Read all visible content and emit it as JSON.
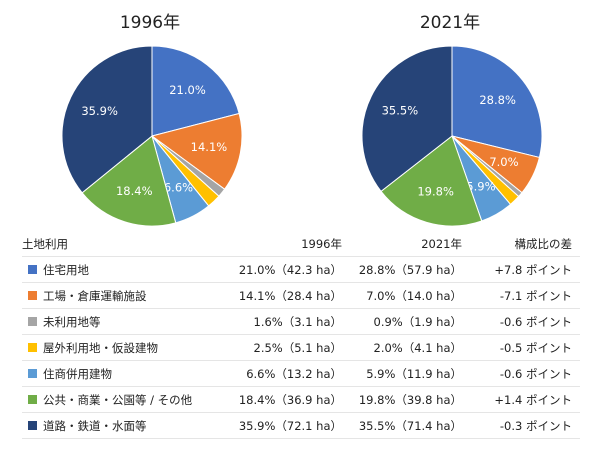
{
  "chart_data": [
    {
      "type": "pie",
      "title": "1996年",
      "categories": [
        "住宅用地",
        "工場・倉庫運輸施設",
        "未利用地等",
        "屋外利用地・仮設建物",
        "住商併用建物",
        "公共・商業・公園等 / その他",
        "道路・鉄道・水面等"
      ],
      "values": [
        21.0,
        14.1,
        1.6,
        2.5,
        6.6,
        18.4,
        35.9
      ],
      "labels": [
        "21.0%",
        "14.1%",
        "",
        "",
        "6.6%",
        "18.4%",
        "35.9%"
      ]
    },
    {
      "type": "pie",
      "title": "2021年",
      "categories": [
        "住宅用地",
        "工場・倉庫運輸施設",
        "未利用地等",
        "屋外利用地・仮設建物",
        "住商併用建物",
        "公共・商業・公園等 / その他",
        "道路・鉄道・水面等"
      ],
      "values": [
        28.8,
        7.0,
        0.9,
        2.0,
        5.9,
        19.8,
        35.5
      ],
      "labels": [
        "28.8%",
        "7.0%",
        "",
        "",
        "5.9%",
        "19.8%",
        "35.5%"
      ]
    }
  ],
  "colors": [
    "#4472c4",
    "#ed7d31",
    "#a5a5a5",
    "#ffc000",
    "#5b9bd5",
    "#70ad47",
    "#264478"
  ],
  "table": {
    "headers": [
      "土地利用",
      "1996年",
      "2021年",
      "構成比の差"
    ],
    "rows": [
      {
        "category": "住宅用地",
        "y1996": "21.0%（42.3 ha）",
        "y2021": "28.8%（57.9 ha）",
        "diff": "+7.8 ポイント"
      },
      {
        "category": "工場・倉庫運輸施設",
        "y1996": "14.1%（28.4 ha）",
        "y2021": "7.0%（14.0 ha）",
        "diff": "-7.1 ポイント"
      },
      {
        "category": "未利用地等",
        "y1996": "1.6%（3.1 ha）",
        "y2021": "0.9%（1.9 ha）",
        "diff": "-0.6 ポイント"
      },
      {
        "category": "屋外利用地・仮設建物",
        "y1996": "2.5%（5.1 ha）",
        "y2021": "2.0%（4.1 ha）",
        "diff": "-0.5 ポイント"
      },
      {
        "category": "住商併用建物",
        "y1996": "6.6%（13.2 ha）",
        "y2021": "5.9%（11.9 ha）",
        "diff": "-0.6 ポイント"
      },
      {
        "category": "公共・商業・公園等 / その他",
        "y1996": "18.4%（36.9 ha）",
        "y2021": "19.8%（39.8 ha）",
        "diff": "+1.4 ポイント"
      },
      {
        "category": "道路・鉄道・水面等",
        "y1996": "35.9%（72.1 ha）",
        "y2021": "35.5%（71.4 ha）",
        "diff": "-0.3 ポイント"
      }
    ]
  }
}
